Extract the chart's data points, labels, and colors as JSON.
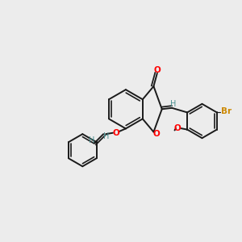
{
  "bg_color": "#ececec",
  "bond_color": "#1a1a1a",
  "bond_width": 1.4,
  "oxygen_color": "#ff0000",
  "bromine_color": "#cc8800",
  "h_color": "#4a9090",
  "figsize": [
    3.0,
    3.0
  ],
  "dpi": 100,
  "xlim": [
    0,
    10
  ],
  "ylim": [
    0,
    10
  ]
}
